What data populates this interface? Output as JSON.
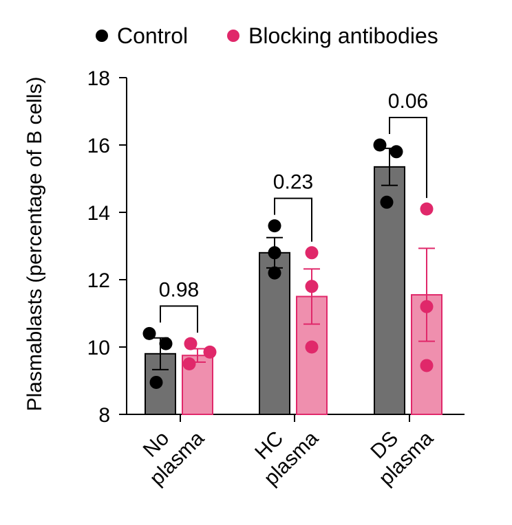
{
  "chart_data": {
    "type": "bar",
    "ylabel": "Plasmablasts (percentage of B cells)",
    "ylim": [
      8,
      18
    ],
    "yticks": [
      8,
      10,
      12,
      14,
      16,
      18
    ],
    "categories": [
      [
        "No",
        "plasma"
      ],
      [
        "HC",
        "plasma"
      ],
      [
        "DS",
        "plasma"
      ]
    ],
    "legend": "top",
    "series": [
      {
        "name": "Control",
        "color": "#000000",
        "bar_fill": "#707070",
        "values": [
          9.8,
          12.8,
          15.35
        ],
        "sem": [
          0.47,
          0.45,
          0.55
        ],
        "points": [
          [
            10.4,
            10.1,
            8.95
          ],
          [
            13.6,
            12.8,
            12.2
          ],
          [
            16.0,
            15.8,
            14.3
          ]
        ]
      },
      {
        "name": "Blocking antibodies",
        "color": "#e0286a",
        "bar_fill": "#ef8fae",
        "values": [
          9.75,
          11.5,
          11.55
        ],
        "sem": [
          0.2,
          0.82,
          1.38
        ],
        "points": [
          [
            10.1,
            9.5,
            9.85
          ],
          [
            12.8,
            11.8,
            10.0
          ],
          [
            14.1,
            11.2,
            9.45
          ]
        ]
      }
    ],
    "pvalues": [
      "0.98",
      "0.23",
      "0.06"
    ]
  }
}
